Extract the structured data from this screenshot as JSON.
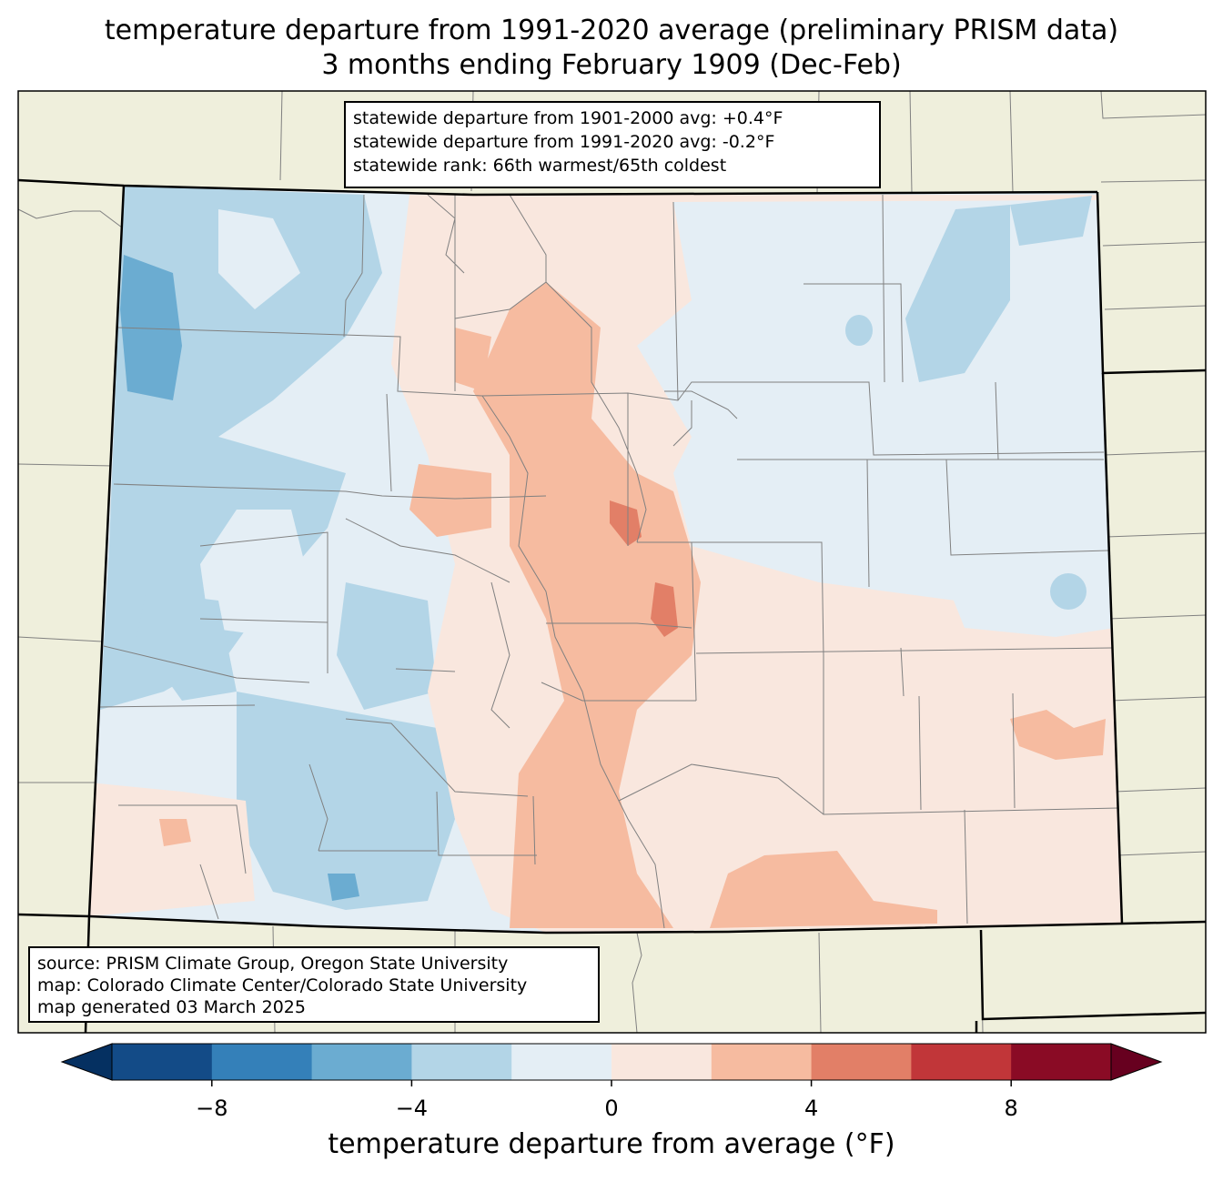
{
  "title": {
    "line1": "temperature departure from 1991-2020 average (preliminary PRISM data)",
    "line2": "3 months ending February 1909 (Dec-Feb)"
  },
  "stats": {
    "line1": "statewide departure from 1901-2000 avg: +0.4°F",
    "line2": "statewide departure from 1991-2020 avg: -0.2°F",
    "line3": "statewide rank: 66th warmest/65th coldest"
  },
  "source": {
    "line1": "source: PRISM Climate Group, Oregon State University",
    "line2": "map: Colorado Climate Center/Colorado State University",
    "line3": "map generated 03 March 2025"
  },
  "colorbar": {
    "label": "temperature departure from average (°F)",
    "ticks": [
      {
        "value": -8,
        "label": "−8"
      },
      {
        "value": -4,
        "label": "−4"
      },
      {
        "value": 0,
        "label": "0"
      },
      {
        "value": 4,
        "label": "4"
      },
      {
        "value": 8,
        "label": "8"
      }
    ],
    "range": [
      -10,
      10
    ],
    "bins": [
      {
        "from": -10,
        "to": -8,
        "color": "#134b87"
      },
      {
        "from": -8,
        "to": -6,
        "color": "#3480b9"
      },
      {
        "from": -6,
        "to": -4,
        "color": "#6bacd1"
      },
      {
        "from": -4,
        "to": -2,
        "color": "#b3d5e7"
      },
      {
        "from": -2,
        "to": 0,
        "color": "#e4eef5"
      },
      {
        "from": 0,
        "to": 2,
        "color": "#f9e7de"
      },
      {
        "from": 2,
        "to": 4,
        "color": "#f6bba0"
      },
      {
        "from": 4,
        "to": 6,
        "color": "#e27f67"
      },
      {
        "from": 6,
        "to": 8,
        "color": "#c13639"
      },
      {
        "from": 8,
        "to": 10,
        "color": "#8a0b25"
      }
    ],
    "under_color": "#053061",
    "over_color": "#67001f"
  },
  "colors": {
    "land": "#efefdc",
    "boundary": "#808080",
    "state_border": "#000000"
  }
}
